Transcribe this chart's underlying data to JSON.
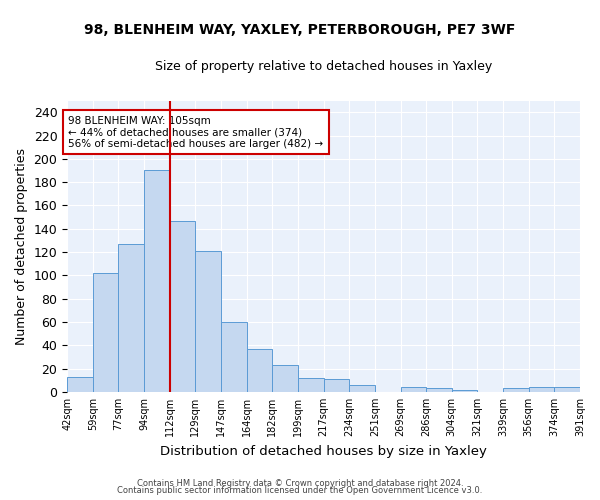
{
  "title1": "98, BLENHEIM WAY, YAXLEY, PETERBOROUGH, PE7 3WF",
  "title2": "Size of property relative to detached houses in Yaxley",
  "xlabel": "Distribution of detached houses by size in Yaxley",
  "ylabel": "Number of detached properties",
  "footer1": "Contains HM Land Registry data © Crown copyright and database right 2024.",
  "footer2": "Contains public sector information licensed under the Open Government Licence v3.0.",
  "bin_labels": [
    "42sqm",
    "59sqm",
    "77sqm",
    "94sqm",
    "112sqm",
    "129sqm",
    "147sqm",
    "164sqm",
    "182sqm",
    "199sqm",
    "217sqm",
    "234sqm",
    "251sqm",
    "269sqm",
    "286sqm",
    "304sqm",
    "321sqm",
    "339sqm",
    "356sqm",
    "374sqm",
    "391sqm"
  ],
  "bar_values": [
    13,
    102,
    127,
    190,
    147,
    121,
    60,
    37,
    23,
    12,
    11,
    6,
    0,
    4,
    3,
    2,
    0,
    3,
    4,
    4
  ],
  "bar_color": "#c5d8f0",
  "bar_edge_color": "#5b9bd5",
  "vline_color": "#cc0000",
  "annotation_text": "98 BLENHEIM WAY: 105sqm\n← 44% of detached houses are smaller (374)\n56% of semi-detached houses are larger (482) →",
  "annotation_box_color": "white",
  "annotation_box_edgecolor": "#cc0000",
  "ylim": [
    0,
    250
  ],
  "yticks": [
    0,
    20,
    40,
    60,
    80,
    100,
    120,
    140,
    160,
    180,
    200,
    220,
    240
  ],
  "bin_edges": [
    42,
    59,
    77,
    94,
    112,
    129,
    147,
    164,
    182,
    199,
    217,
    234,
    251,
    269,
    286,
    304,
    321,
    339,
    356,
    374,
    391
  ],
  "plot_bg_color": "#eaf1fb",
  "vline_bin_index": 4
}
